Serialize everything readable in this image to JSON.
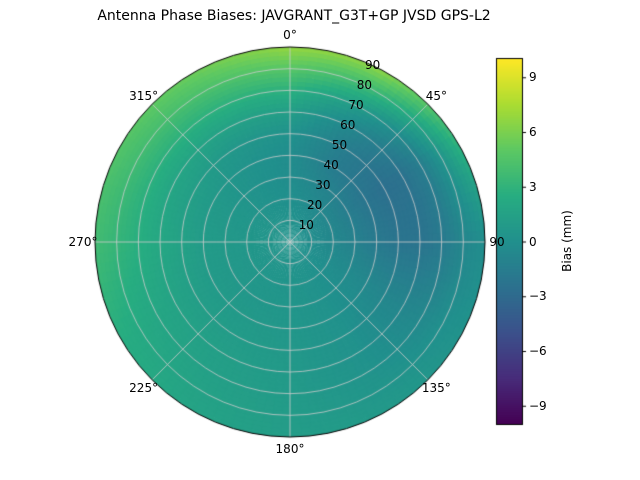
{
  "chart_data": {
    "type": "heatmap",
    "projection": "polar",
    "title": "Antenna Phase Biases: JAVGRANT_G3T+GP JVSD GPS-L2",
    "theta_ticks_deg": [
      0,
      45,
      90,
      135,
      180,
      225,
      270,
      315
    ],
    "theta_tick_labels": [
      "0°",
      "45°",
      "90",
      "135°",
      "180°",
      "225°",
      "270°",
      "315°"
    ],
    "r_ticks": [
      10,
      20,
      30,
      40,
      50,
      60,
      70,
      80,
      90
    ],
    "r_tick_labels": [
      "10",
      "20",
      "30",
      "40",
      "50",
      "60",
      "70",
      "80",
      "90"
    ],
    "r_label_angle_deg": 22.5,
    "r_max": 90,
    "grid": true,
    "grid_color": "#cccccc",
    "azimuth_deg": [
      0,
      30,
      60,
      90,
      120,
      150,
      180,
      210,
      240,
      270,
      300,
      330
    ],
    "zenith_deg": [
      0,
      10,
      20,
      30,
      40,
      50,
      60,
      70,
      80,
      90
    ],
    "values_mm": [
      [
        0.3,
        0.3,
        0.3,
        0.3,
        0.3,
        0.3,
        0.3,
        0.3,
        0.3,
        0.3,
        0.3,
        0.3
      ],
      [
        0.2,
        0.0,
        -0.2,
        -0.2,
        0.0,
        0.2,
        0.3,
        0.4,
        0.4,
        0.5,
        0.4,
        0.3
      ],
      [
        0.0,
        -0.5,
        -0.8,
        -0.7,
        -0.2,
        0.2,
        0.4,
        0.5,
        0.6,
        0.6,
        0.5,
        0.2
      ],
      [
        -0.2,
        -1.0,
        -1.5,
        -1.2,
        -0.4,
        0.2,
        0.5,
        0.6,
        0.7,
        0.8,
        0.6,
        0.2
      ],
      [
        -0.2,
        -1.6,
        -2.2,
        -1.8,
        -0.6,
        0.2,
        0.6,
        0.8,
        0.9,
        1.0,
        0.8,
        0.3
      ],
      [
        0.2,
        -1.5,
        -2.6,
        -2.2,
        -0.8,
        0.2,
        0.7,
        1.0,
        1.2,
        1.5,
        1.2,
        0.6
      ],
      [
        1.2,
        -0.8,
        -2.4,
        -2.3,
        -0.8,
        0.2,
        0.8,
        1.2,
        1.6,
        2.0,
        1.8,
        1.5
      ],
      [
        2.8,
        0.8,
        -1.5,
        -1.8,
        -0.6,
        0.3,
        0.9,
        1.3,
        1.9,
        2.6,
        2.8,
        2.8
      ],
      [
        4.8,
        3.5,
        0.5,
        -0.8,
        0.0,
        0.5,
        1.0,
        1.5,
        2.2,
        3.2,
        3.8,
        4.2
      ],
      [
        6.8,
        6.5,
        3.0,
        -0.2,
        0.3,
        0.8,
        1.1,
        1.6,
        2.5,
        3.8,
        4.6,
        5.5
      ]
    ],
    "colorbar": {
      "label": "Bias (mm)",
      "colormap": "viridis",
      "vmin": -10,
      "vmax": 10,
      "ticks": [
        9,
        6,
        3,
        0,
        -3,
        -6,
        -9
      ],
      "tick_labels": [
        "9",
        "6",
        "3",
        "0",
        "−3",
        "−6",
        "−9"
      ]
    }
  }
}
